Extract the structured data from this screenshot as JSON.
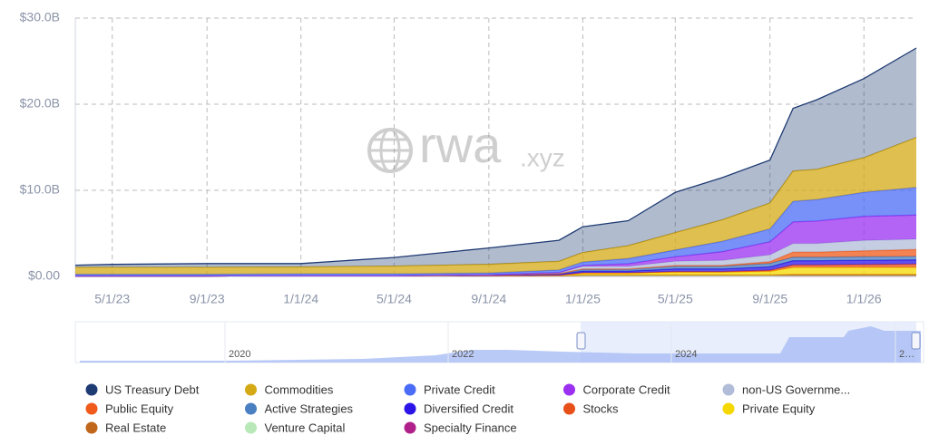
{
  "chart_data": {
    "type": "area",
    "stacked": true,
    "grid": true,
    "watermark": {
      "brand": "rwa",
      "domain": ".xyz"
    },
    "x": [
      "3/14/23",
      "5/1/23",
      "9/1/23",
      "1/1/24",
      "5/1/24",
      "9/1/24",
      "12/1/24",
      "1/1/25",
      "3/1/25",
      "5/1/25",
      "7/1/25",
      "9/1/25",
      "10/1/25",
      "11/1/25",
      "1/1/26",
      "3/10/26"
    ],
    "xlim": [
      "3/14/23",
      "3/10/26"
    ],
    "xticks": [
      "5/1/23",
      "9/1/23",
      "1/1/24",
      "5/1/24",
      "9/1/24",
      "1/1/25",
      "5/1/25",
      "9/1/25",
      "1/1/26"
    ],
    "ylim": [
      0,
      30
    ],
    "yticks": [
      {
        "value": 0,
        "label": "$0.00"
      },
      {
        "value": 10,
        "label": "$10.0B"
      },
      {
        "value": 20,
        "label": "$20.0B"
      },
      {
        "value": 30,
        "label": "$30.0B"
      }
    ],
    "series": [
      {
        "name": "US Treasury Debt",
        "color": "#1f3b73",
        "values": [
          0.25,
          0.35,
          0.45,
          0.4,
          1.0,
          1.9,
          2.45,
          3.0,
          2.9,
          4.7,
          4.9,
          5.0,
          7.3,
          8.1,
          9.2,
          10.4
        ]
      },
      {
        "name": "Commodities",
        "color": "#d4a915",
        "values": [
          0.8,
          0.8,
          0.8,
          0.8,
          0.9,
          1.0,
          1.0,
          1.1,
          1.5,
          2.0,
          2.5,
          3.0,
          3.5,
          3.5,
          4.0,
          5.8
        ]
      },
      {
        "name": "Private Credit",
        "color": "#4a6cf7",
        "values": [
          0.2,
          0.2,
          0.2,
          0.2,
          0.2,
          0.2,
          0.3,
          0.4,
          0.6,
          0.8,
          1.2,
          1.5,
          2.4,
          2.5,
          2.8,
          3.2
        ]
      },
      {
        "name": "Corporate Credit",
        "color": "#9b30f0",
        "values": [
          0,
          0,
          0,
          0,
          0,
          0,
          0,
          0.1,
          0.3,
          0.5,
          1.0,
          1.5,
          2.5,
          2.6,
          2.8,
          2.8
        ]
      },
      {
        "name": "non-US Governme...",
        "color": "#b0bcd8",
        "values": [
          0,
          0,
          0,
          0,
          0,
          0,
          0.1,
          0.3,
          0.3,
          0.5,
          0.6,
          0.8,
          1.0,
          1.0,
          1.2,
          1.2
        ]
      },
      {
        "name": "Public Equity",
        "color": "#f05a1a",
        "values": [
          0,
          0,
          0,
          0,
          0,
          0,
          0,
          0.05,
          0.05,
          0.1,
          0.1,
          0.2,
          0.6,
          0.6,
          0.7,
          0.8
        ]
      },
      {
        "name": "Active Strategies",
        "color": "#4a7fc1",
        "values": [
          0,
          0,
          0,
          0,
          0,
          0.05,
          0.1,
          0.2,
          0.2,
          0.3,
          0.3,
          0.4,
          0.4,
          0.4,
          0.4,
          0.4
        ]
      },
      {
        "name": "Diversified Credit",
        "color": "#2a14e8",
        "values": [
          0,
          0,
          0,
          0,
          0,
          0.05,
          0.1,
          0.2,
          0.2,
          0.3,
          0.3,
          0.4,
          0.5,
          0.5,
          0.5,
          0.5
        ]
      },
      {
        "name": "Stocks",
        "color": "#e8501a",
        "values": [
          0,
          0,
          0,
          0,
          0,
          0,
          0,
          0.05,
          0.05,
          0.1,
          0.1,
          0.15,
          0.3,
          0.3,
          0.35,
          0.4
        ]
      },
      {
        "name": "Private Equity",
        "color": "#f5d800",
        "values": [
          0,
          0,
          0,
          0,
          0,
          0,
          0.05,
          0.2,
          0.2,
          0.3,
          0.3,
          0.4,
          0.8,
          0.8,
          0.8,
          0.8
        ]
      },
      {
        "name": "Real Estate",
        "color": "#c0661a",
        "values": [
          0.05,
          0.05,
          0.05,
          0.05,
          0.05,
          0.05,
          0.05,
          0.1,
          0.1,
          0.1,
          0.1,
          0.1,
          0.15,
          0.15,
          0.15,
          0.15
        ]
      },
      {
        "name": "Venture Capital",
        "color": "#b8e8b8",
        "values": [
          0,
          0,
          0,
          0,
          0,
          0,
          0,
          0.02,
          0.02,
          0.02,
          0.02,
          0.02,
          0.03,
          0.03,
          0.03,
          0.03
        ]
      },
      {
        "name": "Specialty Finance",
        "color": "#b0208a",
        "values": [
          0,
          0,
          0,
          0.05,
          0.05,
          0.05,
          0.05,
          0.05,
          0.05,
          0.05,
          0.05,
          0.05,
          0.05,
          0.05,
          0.05,
          0.05
        ]
      }
    ],
    "navigator": {
      "labels": [
        "2020",
        "2022",
        "2024",
        "2…"
      ]
    }
  }
}
